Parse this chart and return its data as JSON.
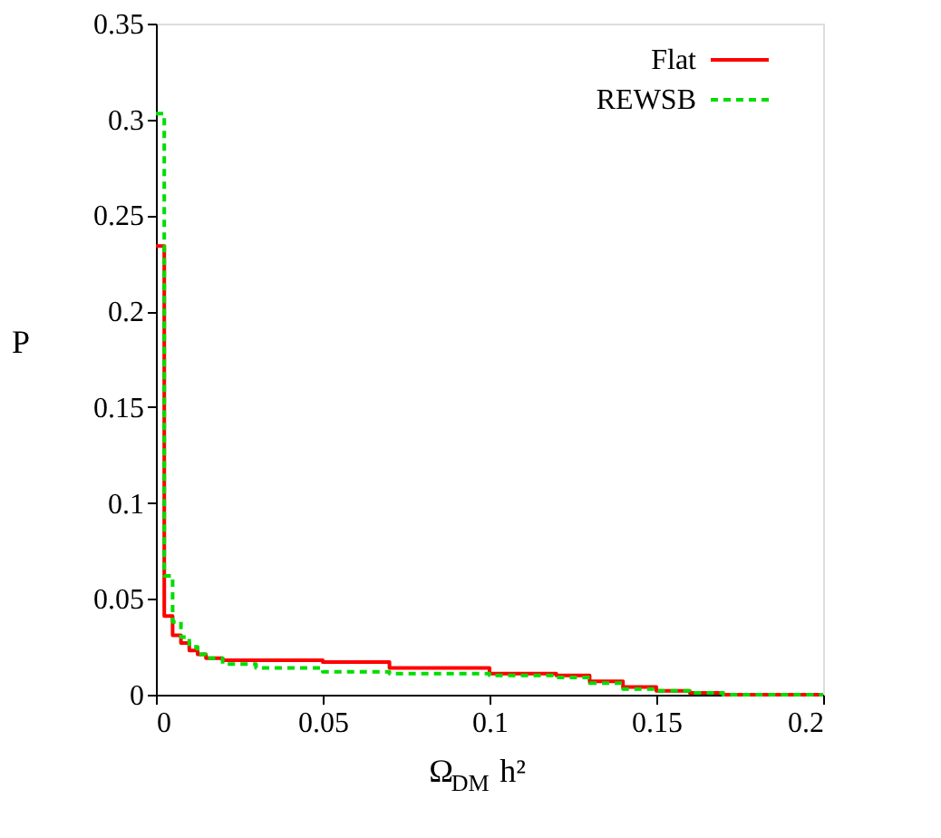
{
  "chart_data": {
    "type": "step",
    "xlabel": "Ω$_{DM}$ h²",
    "ylabel": "P",
    "xlim": [
      0,
      0.2
    ],
    "ylim": [
      0,
      0.35
    ],
    "xticks": [
      0,
      0.05,
      0.1,
      0.15,
      0.2
    ],
    "yticks": [
      0,
      0.05,
      0.1,
      0.15,
      0.2,
      0.25,
      0.3,
      0.35
    ],
    "grid": false,
    "legend": "top right",
    "series": [
      {
        "name": "Flat",
        "color": "#ff0000",
        "line_style": "solid",
        "x": [
          0,
          0.0025,
          0.005,
          0.0075,
          0.01,
          0.0125,
          0.015,
          0.02,
          0.03,
          0.05,
          0.07,
          0.1,
          0.12,
          0.13,
          0.14,
          0.15,
          0.16,
          0.17,
          0.2
        ],
        "values": [
          0.234,
          0.041,
          0.031,
          0.027,
          0.023,
          0.021,
          0.019,
          0.018,
          0.018,
          0.017,
          0.014,
          0.011,
          0.01,
          0.007,
          0.004,
          0.002,
          0.001,
          0,
          0
        ]
      },
      {
        "name": "REWSB",
        "color": "#00dd00",
        "line_style": "dashed",
        "x": [
          0,
          0.0025,
          0.005,
          0.0075,
          0.01,
          0.0125,
          0.015,
          0.02,
          0.03,
          0.05,
          0.07,
          0.1,
          0.12,
          0.13,
          0.14,
          0.15,
          0.16,
          0.17,
          0.2
        ],
        "values": [
          0.303,
          0.062,
          0.038,
          0.03,
          0.025,
          0.021,
          0.019,
          0.016,
          0.014,
          0.012,
          0.011,
          0.01,
          0.009,
          0.006,
          0.003,
          0.002,
          0.001,
          0,
          0
        ]
      }
    ]
  }
}
